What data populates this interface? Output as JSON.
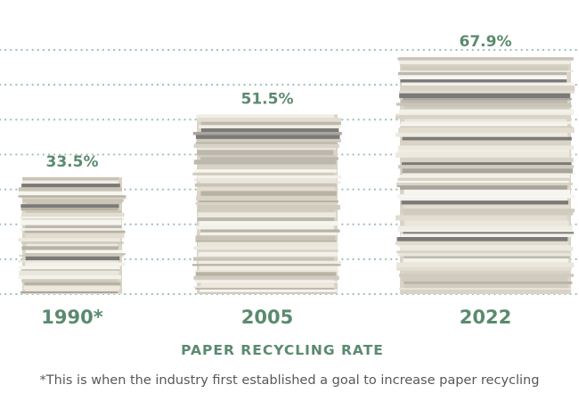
{
  "colors": {
    "accent": "#5b8a6e",
    "grid": "#9cc0b2",
    "text_muted": "#555a55"
  },
  "chart_data": {
    "type": "bar",
    "title": "PAPER RECYCLING RATE",
    "categories": [
      "1990*",
      "2005",
      "2022"
    ],
    "values": [
      33.5,
      51.5,
      67.9
    ],
    "value_labels": [
      "33.5%",
      "51.5%",
      "67.9%"
    ],
    "bar_style": "stacked-paper-pile",
    "ylim": [
      0,
      70
    ],
    "grid": true,
    "grid_style": "dotted-horizontal",
    "gridline_count": 8,
    "xlabel": "",
    "ylabel": ""
  },
  "footnote": "*This is when the industry first established a goal to increase paper recycling"
}
